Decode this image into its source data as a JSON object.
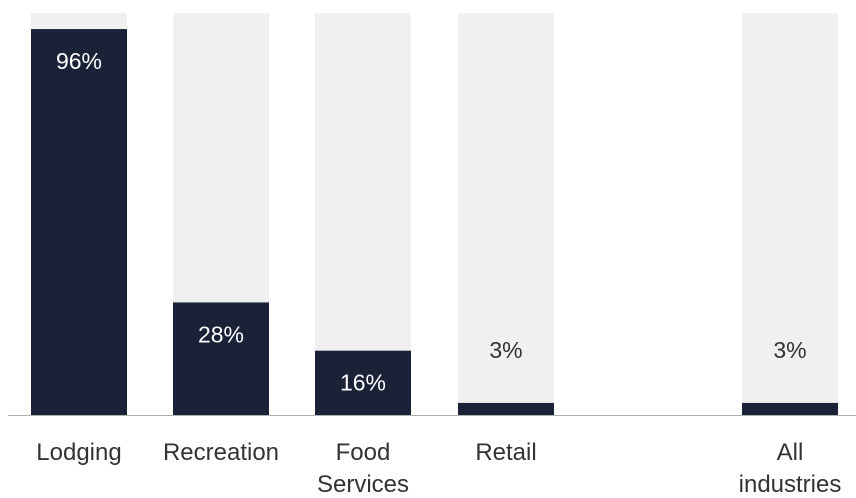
{
  "chart_data": {
    "type": "bar",
    "categories": [
      [
        "Lodging"
      ],
      [
        "Recreation"
      ],
      [
        "Food",
        "Services"
      ],
      [
        "Retail"
      ],
      [
        "All",
        "industries"
      ]
    ],
    "values": [
      96,
      28,
      16,
      3,
      3
    ],
    "value_labels": [
      "96%",
      "28%",
      "16%",
      "3%",
      "3%"
    ],
    "title": "",
    "xlabel": "",
    "ylabel": "",
    "ylim": [
      0,
      100
    ],
    "grid": false,
    "legend": "none"
  },
  "colors": {
    "bar_fill": "#1a2238",
    "bar_background": "#f0f0f0",
    "label_on_bar": "#ffffff",
    "label_off_bar": "#333333",
    "axis": "#b0b0b0"
  }
}
